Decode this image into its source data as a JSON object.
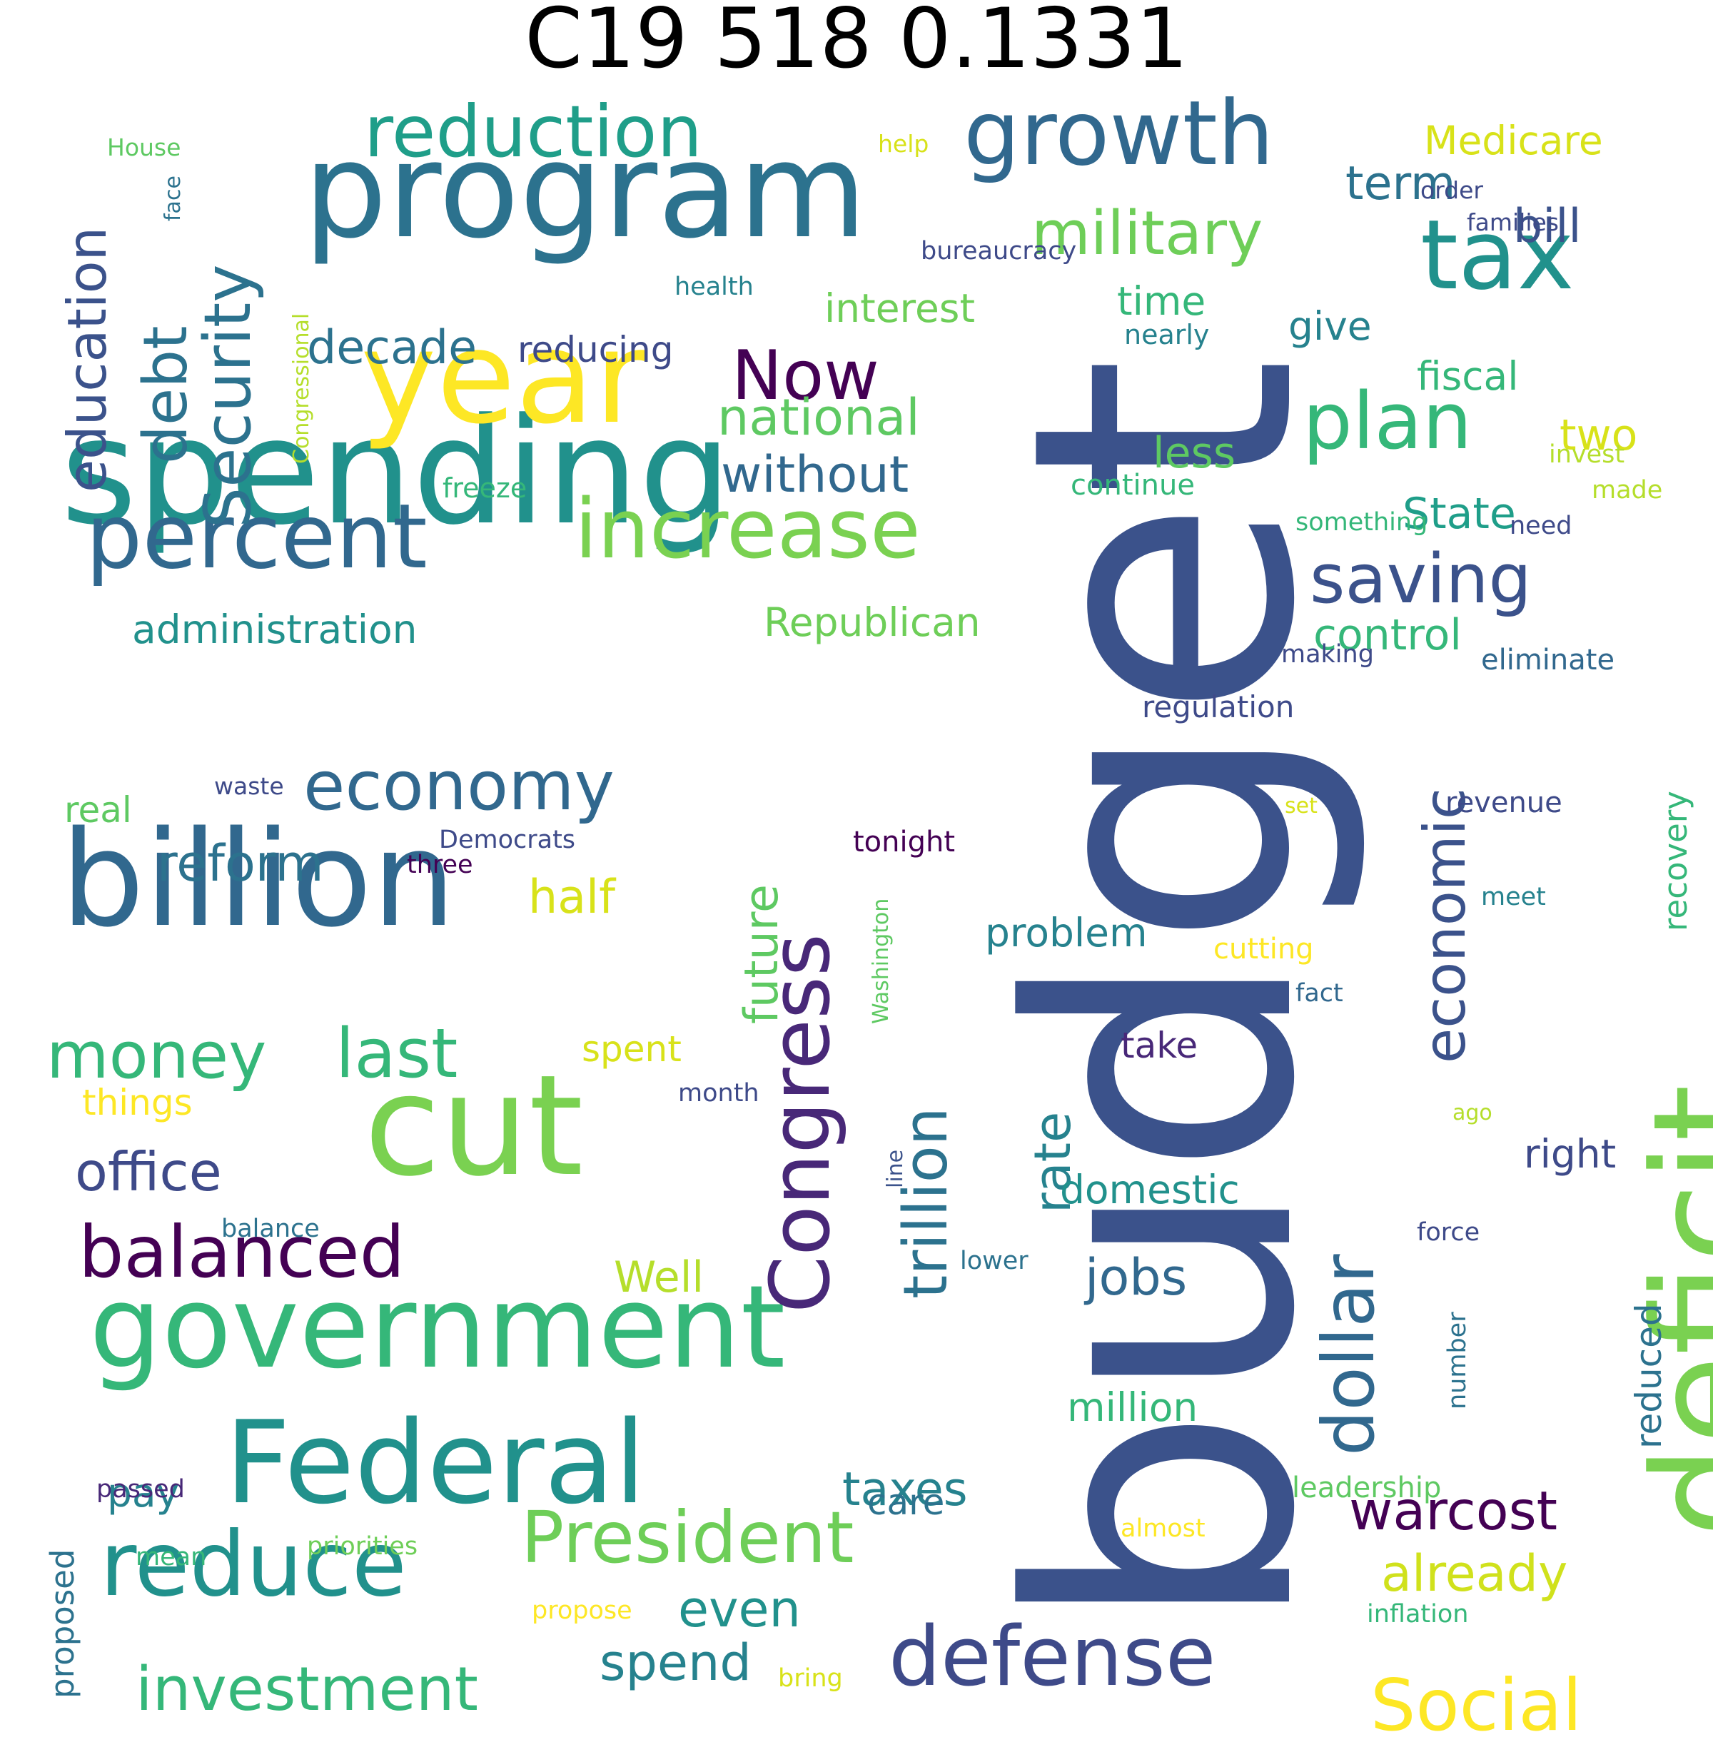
{
  "title": "C19 518 0.1331",
  "palette": {
    "purple": "#440154",
    "indigo": "#3b528b",
    "blue": "#31688e",
    "teal": "#21918c",
    "green": "#35b779",
    "lime": "#7ad151",
    "yellow": "#fde725",
    "olive": "#b5de2b"
  },
  "words": [
    {
      "text": "budget",
      "color": "#3b528b",
      "orientation": "vertical"
    },
    {
      "text": "spending",
      "color": "#21918c",
      "orientation": "horizontal"
    },
    {
      "text": "deficit",
      "color": "#7ad151",
      "orientation": "vertical"
    },
    {
      "text": "program",
      "color": "#2c728e",
      "orientation": "horizontal"
    },
    {
      "text": "billion",
      "color": "#31688e",
      "orientation": "horizontal"
    },
    {
      "text": "year",
      "color": "#fde725",
      "orientation": "horizontal"
    },
    {
      "text": "cut",
      "color": "#7ad151",
      "orientation": "horizontal"
    },
    {
      "text": "government",
      "color": "#35b779",
      "orientation": "horizontal"
    },
    {
      "text": "Federal",
      "color": "#21918c",
      "orientation": "horizontal"
    },
    {
      "text": "tax",
      "color": "#21918c",
      "orientation": "horizontal"
    },
    {
      "text": "growth",
      "color": "#31688e",
      "orientation": "horizontal"
    },
    {
      "text": "Congress",
      "color": "#482878",
      "orientation": "vertical"
    },
    {
      "text": "percent",
      "color": "#31688e",
      "orientation": "horizontal"
    },
    {
      "text": "increase",
      "color": "#7ad151",
      "orientation": "horizontal"
    },
    {
      "text": "reduction",
      "color": "#1f9e89",
      "orientation": "horizontal"
    },
    {
      "text": "reduce",
      "color": "#21918c",
      "orientation": "horizontal"
    },
    {
      "text": "defense",
      "color": "#3e4a89",
      "orientation": "horizontal"
    },
    {
      "text": "economy",
      "color": "#31688e",
      "orientation": "horizontal"
    },
    {
      "text": "Security",
      "color": "#2c728e",
      "orientation": "vertical"
    },
    {
      "text": "dollar",
      "color": "#31688e",
      "orientation": "vertical"
    },
    {
      "text": "plan",
      "color": "#35b779",
      "orientation": "horizontal"
    },
    {
      "text": "money",
      "color": "#35b779",
      "orientation": "horizontal"
    },
    {
      "text": "last",
      "color": "#35b779",
      "orientation": "horizontal"
    },
    {
      "text": "President",
      "color": "#6ece58",
      "orientation": "horizontal"
    },
    {
      "text": "trillion",
      "color": "#2c728e",
      "orientation": "vertical"
    },
    {
      "text": "balanced",
      "color": "#440154",
      "orientation": "horizontal"
    },
    {
      "text": "Now",
      "color": "#440154",
      "orientation": "horizontal"
    },
    {
      "text": "debt",
      "color": "#2c728e",
      "orientation": "vertical"
    },
    {
      "text": "education",
      "color": "#3b528b",
      "orientation": "vertical"
    },
    {
      "text": "Social",
      "color": "#fde725",
      "orientation": "horizontal"
    },
    {
      "text": "military",
      "color": "#6ece58",
      "orientation": "horizontal"
    },
    {
      "text": "saving",
      "color": "#3b528b",
      "orientation": "horizontal"
    },
    {
      "text": "economic",
      "color": "#3b528b",
      "orientation": "vertical"
    },
    {
      "text": "investment",
      "color": "#35b779",
      "orientation": "horizontal"
    },
    {
      "text": "office",
      "color": "#3e4a89",
      "orientation": "horizontal"
    },
    {
      "text": "reform",
      "color": "#2c728e",
      "orientation": "horizontal"
    },
    {
      "text": "future",
      "color": "#5ec962",
      "orientation": "vertical"
    },
    {
      "text": "warcost",
      "color": "#440154",
      "orientation": "horizontal"
    },
    {
      "text": "national",
      "color": "#5ec962",
      "orientation": "horizontal"
    },
    {
      "text": "without",
      "color": "#31688e",
      "orientation": "horizontal"
    },
    {
      "text": "spend",
      "color": "#26828e",
      "orientation": "horizontal"
    },
    {
      "text": "already",
      "color": "#d0e11c",
      "orientation": "horizontal"
    },
    {
      "text": "even",
      "color": "#21918c",
      "orientation": "horizontal"
    },
    {
      "text": "decade",
      "color": "#2c728e",
      "orientation": "horizontal"
    },
    {
      "text": "rate",
      "color": "#26828e",
      "orientation": "vertical"
    },
    {
      "text": "jobs",
      "color": "#31688e",
      "orientation": "horizontal"
    },
    {
      "text": "half",
      "color": "#d8e219",
      "orientation": "horizontal"
    },
    {
      "text": "term",
      "color": "#2c728e",
      "orientation": "horizontal"
    },
    {
      "text": "bill",
      "color": "#3b528b",
      "orientation": "horizontal"
    },
    {
      "text": "Medicare",
      "color": "#d8e219",
      "orientation": "horizontal"
    },
    {
      "text": "control",
      "color": "#35b779",
      "orientation": "horizontal"
    },
    {
      "text": "State",
      "color": "#1f9e89",
      "orientation": "horizontal"
    },
    {
      "text": "Republican",
      "color": "#6ece58",
      "orientation": "horizontal"
    },
    {
      "text": "administration",
      "color": "#21918c",
      "orientation": "horizontal"
    },
    {
      "text": "taxes",
      "color": "#26828e",
      "orientation": "horizontal"
    },
    {
      "text": "interest",
      "color": "#6ece58",
      "orientation": "horizontal"
    },
    {
      "text": "fiscal",
      "color": "#35b779",
      "orientation": "horizontal"
    },
    {
      "text": "two",
      "color": "#d8e219",
      "orientation": "horizontal"
    },
    {
      "text": "less",
      "color": "#5ec962",
      "orientation": "horizontal"
    },
    {
      "text": "reducing",
      "color": "#3e4a89",
      "orientation": "horizontal"
    },
    {
      "text": "time",
      "color": "#35b779",
      "orientation": "horizontal"
    },
    {
      "text": "give",
      "color": "#26828e",
      "orientation": "horizontal"
    },
    {
      "text": "domestic",
      "color": "#21918c",
      "orientation": "horizontal"
    },
    {
      "text": "problem",
      "color": "#26828e",
      "orientation": "horizontal"
    },
    {
      "text": "million",
      "color": "#35b779",
      "orientation": "horizontal"
    },
    {
      "text": "Well",
      "color": "#b5de2b",
      "orientation": "horizontal"
    },
    {
      "text": "right",
      "color": "#3e4a89",
      "orientation": "horizontal"
    },
    {
      "text": "pay",
      "color": "#26828e",
      "orientation": "horizontal"
    },
    {
      "text": "care",
      "color": "#2c728e",
      "orientation": "horizontal"
    },
    {
      "text": "real",
      "color": "#5ec962",
      "orientation": "horizontal"
    },
    {
      "text": "take",
      "color": "#482878",
      "orientation": "horizontal"
    },
    {
      "text": "things",
      "color": "#fde725",
      "orientation": "horizontal"
    },
    {
      "text": "spent",
      "color": "#d8e219",
      "orientation": "horizontal"
    },
    {
      "text": "recovery",
      "color": "#35b779",
      "orientation": "vertical"
    },
    {
      "text": "reduced",
      "color": "#2c728e",
      "orientation": "vertical"
    },
    {
      "text": "regulation",
      "color": "#3e4a89",
      "orientation": "horizontal"
    },
    {
      "text": "proposed",
      "color": "#2c728e",
      "orientation": "vertical"
    },
    {
      "text": "eliminate",
      "color": "#31688e",
      "orientation": "horizontal"
    },
    {
      "text": "revenue",
      "color": "#3e4a89",
      "orientation": "horizontal"
    },
    {
      "text": "leadership",
      "color": "#5ec962",
      "orientation": "horizontal"
    },
    {
      "text": "cutting",
      "color": "#fde725",
      "orientation": "horizontal"
    },
    {
      "text": "inflation",
      "color": "#35b779",
      "orientation": "horizontal"
    },
    {
      "text": "need",
      "color": "#3e4a89",
      "orientation": "horizontal"
    },
    {
      "text": "continue",
      "color": "#35b779",
      "orientation": "horizontal"
    },
    {
      "text": "nearly",
      "color": "#26828e",
      "orientation": "horizontal"
    },
    {
      "text": "tonight",
      "color": "#440154",
      "orientation": "horizontal"
    },
    {
      "text": "freeze",
      "color": "#35b779",
      "orientation": "horizontal"
    },
    {
      "text": "invest",
      "color": "#b5de2b",
      "orientation": "horizontal"
    },
    {
      "text": "made",
      "color": "#b5de2b",
      "orientation": "horizontal"
    },
    {
      "text": "something",
      "color": "#35b779",
      "orientation": "horizontal"
    },
    {
      "text": "making",
      "color": "#3e4a89",
      "orientation": "horizontal"
    },
    {
      "text": "month",
      "color": "#3e4a89",
      "orientation": "horizontal"
    },
    {
      "text": "fact",
      "color": "#31688e",
      "orientation": "horizontal"
    },
    {
      "text": "balance",
      "color": "#2c728e",
      "orientation": "horizontal"
    },
    {
      "text": "passed",
      "color": "#482878",
      "orientation": "horizontal"
    },
    {
      "text": "mean",
      "color": "#35b779",
      "orientation": "horizontal"
    },
    {
      "text": "priorities",
      "color": "#6ece58",
      "orientation": "horizontal"
    },
    {
      "text": "propose",
      "color": "#fde725",
      "orientation": "horizontal"
    },
    {
      "text": "bring",
      "color": "#d8e219",
      "orientation": "horizontal"
    },
    {
      "text": "almost",
      "color": "#fde725",
      "orientation": "horizontal"
    },
    {
      "text": "number",
      "color": "#2c728e",
      "orientation": "vertical"
    },
    {
      "text": "force",
      "color": "#3e4a89",
      "orientation": "horizontal"
    },
    {
      "text": "lower",
      "color": "#2c728e",
      "orientation": "horizontal"
    },
    {
      "text": "meet",
      "color": "#26828e",
      "orientation": "horizontal"
    },
    {
      "text": "set",
      "color": "#d8e219",
      "orientation": "horizontal"
    },
    {
      "text": "ago",
      "color": "#b5de2b",
      "orientation": "horizontal"
    },
    {
      "text": "line",
      "color": "#3b528b",
      "orientation": "vertical"
    },
    {
      "text": "Washington",
      "color": "#5ec962",
      "orientation": "vertical"
    },
    {
      "text": "Democrats",
      "color": "#3e4a89",
      "orientation": "horizontal"
    },
    {
      "text": "three",
      "color": "#440154",
      "orientation": "horizontal"
    },
    {
      "text": "waste",
      "color": "#3e4a89",
      "orientation": "horizontal"
    },
    {
      "text": "health",
      "color": "#26828e",
      "orientation": "horizontal"
    },
    {
      "text": "bureaucracy",
      "color": "#3e4a89",
      "orientation": "horizontal"
    },
    {
      "text": "help",
      "color": "#d8e219",
      "orientation": "horizontal"
    },
    {
      "text": "order",
      "color": "#3e4a89",
      "orientation": "horizontal"
    },
    {
      "text": "families",
      "color": "#3e4a89",
      "orientation": "horizontal"
    },
    {
      "text": "House",
      "color": "#5ec962",
      "orientation": "horizontal"
    },
    {
      "text": "face",
      "color": "#2c728e",
      "orientation": "vertical"
    },
    {
      "text": "Congressional",
      "color": "#b5de2b",
      "orientation": "vertical"
    }
  ]
}
